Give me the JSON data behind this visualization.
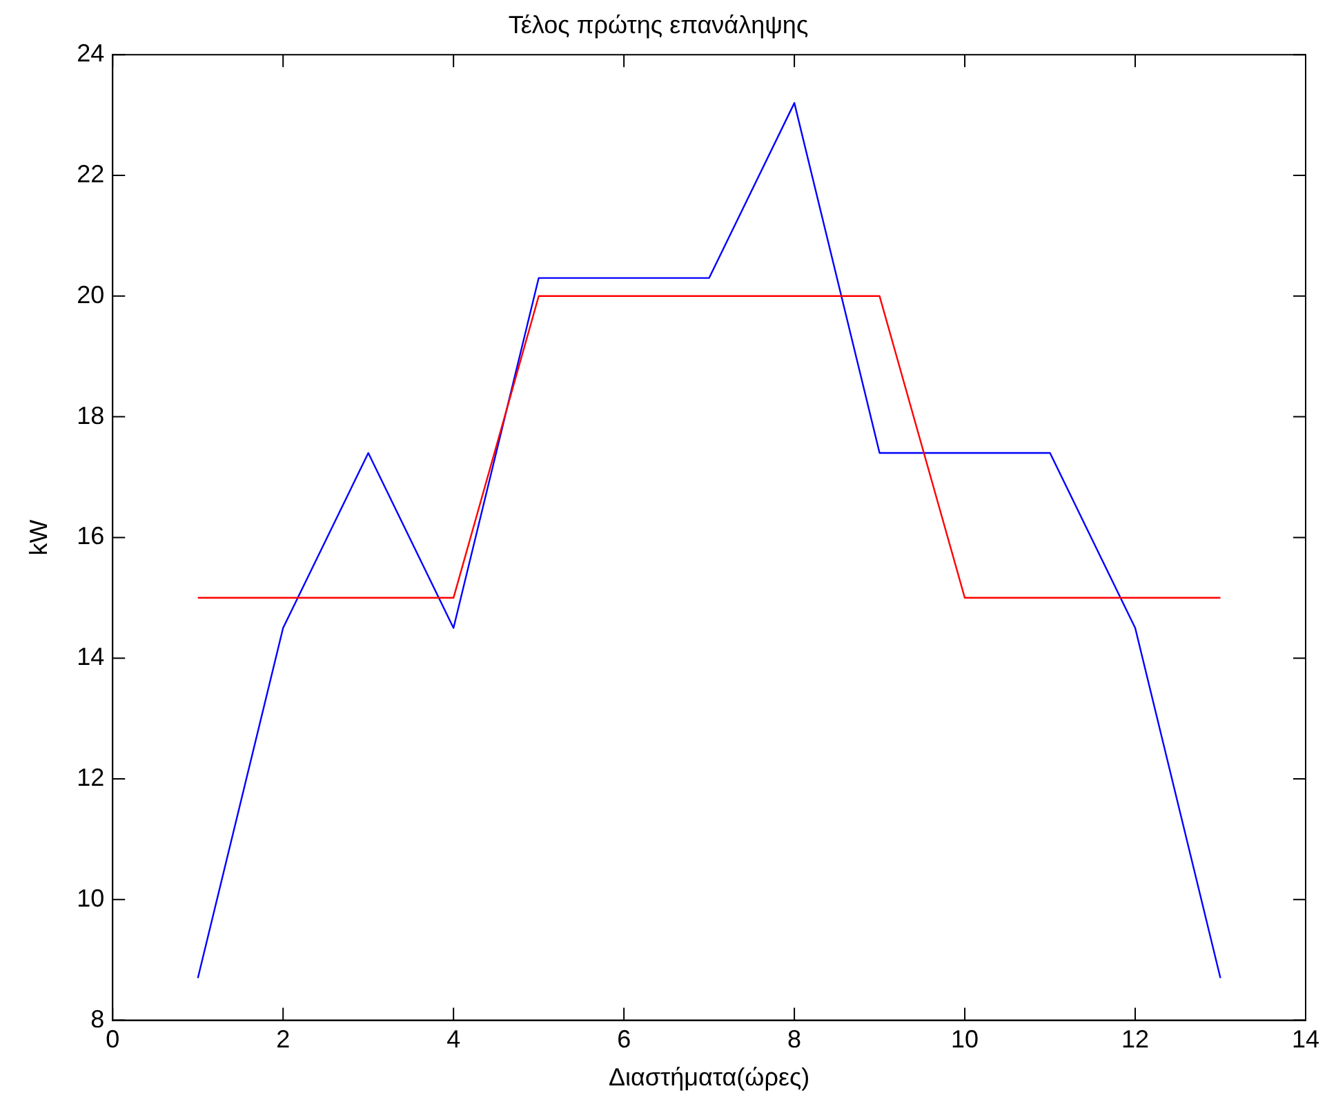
{
  "chart_data": {
    "type": "line",
    "title": "Τέλος πρώτης επανάληψης",
    "xlabel": "Διαστήματα(ώρες)",
    "ylabel": "kW",
    "x": [
      1,
      2,
      3,
      4,
      5,
      6,
      7,
      8,
      9,
      10,
      11,
      12,
      13
    ],
    "series": [
      {
        "color": "#ff0000",
        "values": [
          15,
          15,
          15,
          15,
          20,
          20,
          20,
          20,
          20,
          15,
          15,
          15,
          15
        ]
      },
      {
        "color": "#0000ff",
        "values": [
          8.7,
          14.5,
          17.4,
          14.5,
          20.3,
          20.3,
          20.3,
          23.2,
          17.4,
          17.4,
          17.4,
          14.5,
          8.7
        ]
      }
    ],
    "xlim": [
      0,
      14
    ],
    "xticks": [
      0,
      2,
      4,
      6,
      8,
      10,
      12,
      14
    ],
    "ylim": [
      8,
      24
    ],
    "yticks": [
      8,
      10,
      12,
      14,
      16,
      18,
      20,
      22,
      24
    ],
    "grid": false,
    "legend": false,
    "marker": "none",
    "line_style": "solid"
  }
}
